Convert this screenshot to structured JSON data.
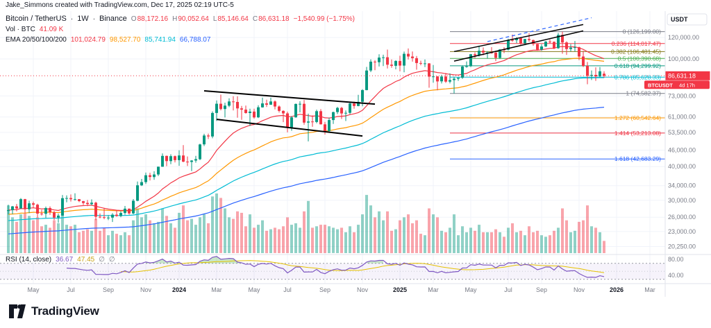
{
  "attribution": "Jake_Simmons created with TradingView.com, Dec 17, 2025 02:19 UTC-5",
  "symbol_header": {
    "symbol": "Bitcoin / TetherUS",
    "sep": "·",
    "interval": "1W",
    "exchange": "Binance",
    "o_label": "O",
    "o": "88,172.16",
    "h_label": "H",
    "h": "90,052.64",
    "l_label": "L",
    "l": "85,146.64",
    "c_label": "C",
    "c": "86,631.18",
    "change": "−1,540.99 (−1.75%)"
  },
  "volume_header": {
    "label": "Vol · BTC",
    "value": "41.09 K"
  },
  "ema_header": {
    "label": "EMA 20/50/100/200",
    "v20": "101,024.79",
    "v50": "98,527.70",
    "v100": "85,741.94",
    "v200": "66,788.07"
  },
  "rsi_header": {
    "label": "RSI (14, close)",
    "rsi": "36.67",
    "ma": "47.45",
    "e1": "∅",
    "e2": "∅"
  },
  "footer": {
    "brand": "TradingView"
  },
  "price_axis": {
    "currency": "USDT",
    "last_price": "86,631.18",
    "symbol_badge": "BTCUSDT",
    "countdown": "4d 17h",
    "ticks": [
      {
        "label": "120,000.00",
        "value": 120000
      },
      {
        "label": "100,000.00",
        "value": 100000
      },
      {
        "label": "73,000.00",
        "value": 73000
      },
      {
        "label": "61,000.00",
        "value": 61000
      },
      {
        "label": "53,500.00",
        "value": 53500
      },
      {
        "label": "46,000.00",
        "value": 46000
      },
      {
        "label": "40,000.00",
        "value": 40000
      },
      {
        "label": "34,000.00",
        "value": 34000
      },
      {
        "label": "30,000.00",
        "value": 30000
      },
      {
        "label": "26,000.00",
        "value": 26000
      },
      {
        "label": "23,000.00",
        "value": 23000
      },
      {
        "label": "20,250.00",
        "value": 20250
      }
    ],
    "rsi_ticks": [
      {
        "label": "80.00",
        "value": 80
      },
      {
        "label": "40.00",
        "value": 40
      }
    ]
  },
  "time_axis": {
    "labels": [
      {
        "t": "May",
        "i": 6
      },
      {
        "t": "Jul",
        "i": 15
      },
      {
        "t": "Sep",
        "i": 24
      },
      {
        "t": "Nov",
        "i": 33
      },
      {
        "t": "2024",
        "i": 41,
        "year": true
      },
      {
        "t": "Mar",
        "i": 50
      },
      {
        "t": "May",
        "i": 59
      },
      {
        "t": "Jul",
        "i": 67
      },
      {
        "t": "Sep",
        "i": 76
      },
      {
        "t": "Nov",
        "i": 85
      },
      {
        "t": "2025",
        "i": 94,
        "year": true
      },
      {
        "t": "Mar",
        "i": 102
      },
      {
        "t": "May",
        "i": 111
      },
      {
        "t": "Jul",
        "i": 120
      },
      {
        "t": "Sep",
        "i": 128
      },
      {
        "t": "Nov",
        "i": 137
      },
      {
        "t": "2026",
        "i": 146,
        "year": true
      },
      {
        "t": "Mar",
        "i": 154
      }
    ]
  },
  "colors": {
    "up": "#089981",
    "down": "#f23645",
    "ema20": "#f23645",
    "ema50": "#ff9800",
    "ema100": "#00bcd4",
    "ema200": "#2962ff",
    "grid": "#f0f3fa",
    "axis_border": "#e0e3eb",
    "axis_text": "#787b86",
    "rsi": "#7e57c2",
    "rsi_ma": "#e5c100",
    "badge": "#f23645"
  },
  "chart_data": {
    "type": "candlestick",
    "title": "Bitcoin / TetherUS · 1W · Binance",
    "scale": "log",
    "panes": [
      "price",
      "volume",
      "rsi"
    ],
    "timeframe": "1W",
    "last_price": 86631.18,
    "emas": [
      20,
      50,
      100,
      200
    ],
    "ema_seeds": [
      27600,
      26600,
      25200,
      22500
    ],
    "rsi": {
      "period": 14,
      "overbought": 70,
      "oversold": 30,
      "last": 36.67,
      "ma_last": 47.45
    },
    "fib": {
      "start_index": 106,
      "low": 74582.37,
      "high": 126199.0,
      "levels": [
        {
          "label": "0 (126,199.00)",
          "price": 126199.0,
          "color": "#787b86"
        },
        {
          "label": "0.236 (114,017.47)",
          "price": 114017.47,
          "color": "#f23645"
        },
        {
          "label": "0.382 (106,481.45)",
          "price": 106481.45,
          "color": "#827717"
        },
        {
          "label": "0.5 (100,390.68)",
          "price": 100390.68,
          "color": "#4caf50"
        },
        {
          "label": "0.618 (94,299.92)",
          "price": 94299.92,
          "color": "#089981"
        },
        {
          "label": "0.786 (85,628.33)",
          "price": 85628.33,
          "color": "#00bcd4"
        },
        {
          "label": "1 (74,582.37)",
          "price": 74582.37,
          "color": "#787b86"
        },
        {
          "label": "1.272 (60,542.64)",
          "price": 60542.64,
          "color": "#ff9800"
        },
        {
          "label": "1.414 (53,213.08)",
          "price": 53213.08,
          "color": "#f23645"
        },
        {
          "label": "1.618 (42,683.29)",
          "price": 42683.29,
          "color": "#2962ff"
        }
      ]
    },
    "drawings": [
      {
        "name": "flag-upper-trendline",
        "i1": 47,
        "p1": 76200,
        "i2": 88,
        "p2": 68100,
        "color": "#000000",
        "width": 2
      },
      {
        "name": "flag-lower-trendline",
        "i1": 50,
        "p1": 59800,
        "i2": 85,
        "p2": 51900,
        "color": "#000000",
        "width": 2
      },
      {
        "name": "wedge-upper-trendline",
        "i1": 107,
        "p1": 106500,
        "i2": 138,
        "p2": 134000,
        "color": "#000000",
        "width": 1.5
      },
      {
        "name": "wedge-lower-trendline",
        "i1": 107,
        "p1": 98200,
        "i2": 138,
        "p2": 127000,
        "color": "#000000",
        "width": 1.5
      },
      {
        "name": "projection-dashed-line",
        "i1": 115,
        "p1": 116000,
        "i2": 140,
        "p2": 142000,
        "color": "#2962ff",
        "width": 1.2,
        "dash": "5,4"
      }
    ],
    "candles": [
      [
        27400,
        28900,
        26600,
        27600,
        160
      ],
      [
        27600,
        28600,
        26700,
        28500,
        120
      ],
      [
        28500,
        29100,
        27300,
        28000,
        105
      ],
      [
        28000,
        30600,
        27900,
        30300,
        130
      ],
      [
        30300,
        30400,
        26950,
        27800,
        135
      ],
      [
        27800,
        29900,
        26900,
        29250,
        125
      ],
      [
        29250,
        29700,
        28100,
        28900,
        110
      ],
      [
        28900,
        29150,
        25900,
        26800,
        120
      ],
      [
        26800,
        27700,
        26350,
        26750,
        90
      ],
      [
        26750,
        28450,
        25850,
        28100,
        95
      ],
      [
        28100,
        28500,
        26500,
        27100,
        85
      ],
      [
        27100,
        27400,
        25350,
        25900,
        110
      ],
      [
        25900,
        26800,
        24800,
        26350,
        100
      ],
      [
        26350,
        31400,
        26300,
        30550,
        140
      ],
      [
        30550,
        31300,
        29500,
        30600,
        95
      ],
      [
        30600,
        31550,
        29700,
        30300,
        90
      ],
      [
        30300,
        31850,
        29950,
        30300,
        95
      ],
      [
        30300,
        30350,
        29550,
        29800,
        70
      ],
      [
        29800,
        29850,
        28850,
        29350,
        75
      ],
      [
        29350,
        30100,
        28550,
        29050,
        80
      ],
      [
        29050,
        30250,
        28750,
        29400,
        75
      ],
      [
        29400,
        29650,
        25350,
        26100,
        115
      ],
      [
        26100,
        26850,
        25750,
        26000,
        75
      ],
      [
        26000,
        28150,
        25550,
        25900,
        85
      ],
      [
        25900,
        26450,
        25350,
        25900,
        60
      ],
      [
        25900,
        26900,
        24950,
        26550,
        75
      ],
      [
        26550,
        27500,
        26100,
        26250,
        65
      ],
      [
        26250,
        27350,
        26000,
        26950,
        60
      ],
      [
        26950,
        28600,
        26550,
        27950,
        70
      ],
      [
        27950,
        28000,
        26550,
        26850,
        60
      ],
      [
        26850,
        30350,
        26650,
        29900,
        110
      ],
      [
        29900,
        35200,
        29750,
        34100,
        150
      ],
      [
        34100,
        36000,
        33900,
        35050,
        120
      ],
      [
        35050,
        38000,
        34500,
        37150,
        130
      ],
      [
        37150,
        37950,
        35550,
        36600,
        110
      ],
      [
        36600,
        38450,
        35750,
        37400,
        100
      ],
      [
        37400,
        40000,
        36900,
        39950,
        105
      ],
      [
        39950,
        44750,
        39900,
        43800,
        150
      ],
      [
        43800,
        43900,
        40150,
        41900,
        125
      ],
      [
        41900,
        44400,
        40800,
        43700,
        100
      ],
      [
        43700,
        43950,
        41450,
        42250,
        85
      ],
      [
        42250,
        45950,
        40250,
        43950,
        135
      ],
      [
        43950,
        48000,
        41500,
        41700,
        160
      ],
      [
        41700,
        43600,
        40200,
        41600,
        110
      ],
      [
        41600,
        42250,
        38500,
        42100,
        115
      ],
      [
        42100,
        43800,
        41350,
        42600,
        95
      ],
      [
        42600,
        48600,
        42250,
        48300,
        120
      ],
      [
        48300,
        52900,
        47650,
        52100,
        130
      ],
      [
        52100,
        52990,
        50550,
        51700,
        100
      ],
      [
        51700,
        64000,
        50900,
        63150,
        190
      ],
      [
        63150,
        70200,
        59000,
        68300,
        200
      ],
      [
        68300,
        73800,
        64550,
        65300,
        185
      ],
      [
        65300,
        68900,
        60750,
        67200,
        150
      ],
      [
        67200,
        71550,
        66350,
        69650,
        120
      ],
      [
        69650,
        72800,
        64500,
        69350,
        115
      ],
      [
        69350,
        72750,
        60650,
        65650,
        140
      ],
      [
        65650,
        67000,
        59600,
        64950,
        135
      ],
      [
        64950,
        67200,
        62750,
        63100,
        90
      ],
      [
        63100,
        65500,
        56500,
        63900,
        130
      ],
      [
        63900,
        65500,
        60150,
        60800,
        85
      ],
      [
        60800,
        67450,
        60450,
        66250,
        95
      ],
      [
        66250,
        71950,
        66050,
        68500,
        110
      ],
      [
        68500,
        70700,
        66450,
        67750,
        75
      ],
      [
        67750,
        71900,
        67600,
        69650,
        80
      ],
      [
        69650,
        70200,
        65050,
        66700,
        85
      ],
      [
        66700,
        67300,
        63400,
        64250,
        80
      ],
      [
        64250,
        64550,
        58400,
        62900,
        90
      ],
      [
        62900,
        63850,
        53500,
        55900,
        120
      ],
      [
        55900,
        61500,
        54250,
        60800,
        95
      ],
      [
        60800,
        68400,
        60650,
        68150,
        100
      ],
      [
        68150,
        69750,
        63450,
        68250,
        85
      ],
      [
        68250,
        70550,
        57100,
        58150,
        140
      ],
      [
        58150,
        62750,
        49550,
        58700,
        175
      ],
      [
        58700,
        61850,
        56100,
        58450,
        85
      ],
      [
        58450,
        64950,
        57850,
        64100,
        90
      ],
      [
        64100,
        65200,
        57250,
        57300,
        95
      ],
      [
        57300,
        58500,
        52550,
        54150,
        95
      ],
      [
        54150,
        60650,
        53650,
        59450,
        90
      ],
      [
        59450,
        63850,
        57500,
        63600,
        85
      ],
      [
        63600,
        66500,
        62550,
        65900,
        80
      ],
      [
        65900,
        66500,
        60000,
        62850,
        85
      ],
      [
        62850,
        64500,
        58950,
        63200,
        70
      ],
      [
        63200,
        69400,
        62500,
        68400,
        90
      ],
      [
        68400,
        69500,
        65500,
        67000,
        70
      ],
      [
        67000,
        73650,
        66850,
        69400,
        95
      ],
      [
        69400,
        77300,
        66800,
        76700,
        130
      ],
      [
        76700,
        93450,
        76550,
        90600,
        195
      ],
      [
        90600,
        99660,
        89400,
        97700,
        160
      ],
      [
        97700,
        98950,
        90800,
        97300,
        120
      ],
      [
        97300,
        104100,
        93750,
        101200,
        140
      ],
      [
        101200,
        103650,
        94150,
        101400,
        110
      ],
      [
        101400,
        108300,
        92200,
        95200,
        140
      ],
      [
        95200,
        99500,
        92800,
        94300,
        75
      ],
      [
        94300,
        98900,
        91550,
        98300,
        80
      ],
      [
        98300,
        102750,
        89950,
        94500,
        110
      ],
      [
        94500,
        106450,
        89250,
        104450,
        120
      ],
      [
        104450,
        109350,
        99550,
        102100,
        130
      ],
      [
        102100,
        106500,
        97750,
        100650,
        100
      ],
      [
        100650,
        102550,
        91250,
        96550,
        110
      ],
      [
        96550,
        98550,
        94750,
        96100,
        65
      ],
      [
        96100,
        99500,
        93350,
        96300,
        60
      ],
      [
        96300,
        96500,
        78250,
        86050,
        150
      ],
      [
        86050,
        95000,
        81650,
        86200,
        130
      ],
      [
        86200,
        86500,
        76600,
        82600,
        120
      ],
      [
        82600,
        87450,
        81150,
        86100,
        75
      ],
      [
        86100,
        88750,
        81550,
        82400,
        70
      ],
      [
        82400,
        88500,
        81200,
        83500,
        85
      ],
      [
        83500,
        86000,
        74500,
        84500,
        130
      ],
      [
        84500,
        85300,
        83000,
        85200,
        60
      ],
      [
        85200,
        94700,
        84350,
        93700,
        90
      ],
      [
        93700,
        97900,
        92850,
        94000,
        70
      ],
      [
        94000,
        104300,
        93350,
        104100,
        85
      ],
      [
        104100,
        105800,
        100700,
        103100,
        75
      ],
      [
        103100,
        111980,
        102100,
        107300,
        95
      ],
      [
        107300,
        110300,
        103100,
        105600,
        70
      ],
      [
        105600,
        106800,
        100350,
        105650,
        70
      ],
      [
        105650,
        110550,
        104550,
        105500,
        70
      ],
      [
        105500,
        107300,
        98200,
        100950,
        80
      ],
      [
        100950,
        108800,
        99950,
        108350,
        70
      ],
      [
        108350,
        110550,
        105100,
        108200,
        55
      ],
      [
        108200,
        118850,
        107550,
        117500,
        85
      ],
      [
        117500,
        123200,
        115700,
        117300,
        100
      ],
      [
        117300,
        120250,
        114500,
        119400,
        70
      ],
      [
        119400,
        119500,
        111900,
        114200,
        75
      ],
      [
        114200,
        118700,
        112400,
        118500,
        60
      ],
      [
        118500,
        124450,
        115750,
        117400,
        90
      ],
      [
        117400,
        117900,
        111900,
        113500,
        70
      ],
      [
        113500,
        113800,
        107300,
        108200,
        75
      ],
      [
        108200,
        113400,
        107250,
        111200,
        60
      ],
      [
        111200,
        116500,
        110750,
        115900,
        55
      ],
      [
        115900,
        117950,
        114300,
        115700,
        60
      ],
      [
        115700,
        116100,
        108700,
        109600,
        75
      ],
      [
        109600,
        124750,
        108950,
        122650,
        85
      ],
      [
        122650,
        126199,
        104500,
        115100,
        150
      ],
      [
        115100,
        116150,
        103550,
        108800,
        110
      ],
      [
        108800,
        113500,
        106650,
        110100,
        70
      ],
      [
        110100,
        116550,
        106500,
        110500,
        75
      ],
      [
        110500,
        111000,
        98950,
        102100,
        105
      ],
      [
        102100,
        107200,
        93350,
        94300,
        110
      ],
      [
        94300,
        97450,
        80600,
        86600,
        160
      ],
      [
        86600,
        90650,
        83550,
        87300,
        90
      ],
      [
        87300,
        93100,
        83000,
        86200,
        85
      ],
      [
        86200,
        93400,
        85500,
        90000,
        70
      ],
      [
        88172,
        90053,
        85147,
        86631,
        41
      ]
    ]
  }
}
